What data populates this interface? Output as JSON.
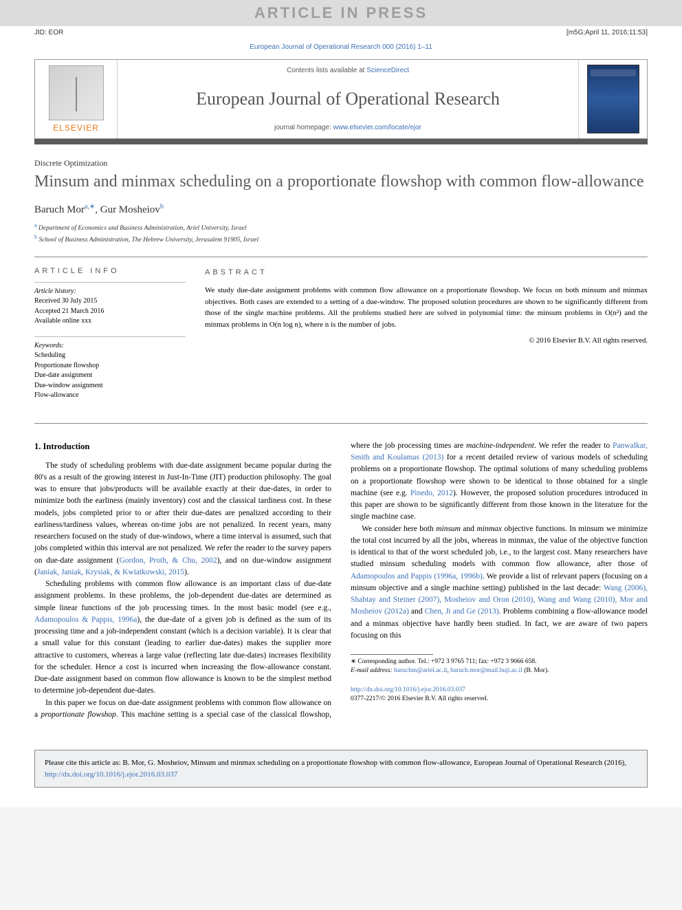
{
  "watermark": "ARTICLE IN PRESS",
  "header": {
    "jid": "JID: EOR",
    "stamp": "[m5G;April 11, 2016;11:53]"
  },
  "journal_ref": "European Journal of Operational Research 000 (2016) 1–11",
  "masthead": {
    "contents_prefix": "Contents lists available at ",
    "contents_link": "ScienceDirect",
    "journal_name": "European Journal of Operational Research",
    "homepage_prefix": "journal homepage: ",
    "homepage_url": "www.elsevier.com/locate/ejor",
    "publisher": "ELSEVIER"
  },
  "article": {
    "section_label": "Discrete Optimization",
    "title": "Minsum and minmax scheduling on a proportionate flowshop with common flow-allowance",
    "author_a_name": "Baruch Mor",
    "author_a_sup": "a,∗",
    "author_sep": ", ",
    "author_b_name": "Gur Mosheiov",
    "author_b_sup": "b",
    "aff_a_sup": "a",
    "aff_a": " Department of Economics and Business Administration, Ariel University, Israel",
    "aff_b_sup": "b",
    "aff_b": " School of Business Administration, The Hebrew University, Jerusalem 91905, Israel"
  },
  "info": {
    "heading": "article info",
    "history_label": "Article history:",
    "received": "Received 30 July 2015",
    "accepted": "Accepted 21 March 2016",
    "online": "Available online xxx",
    "keywords_label": "Keywords:",
    "kw1": "Scheduling",
    "kw2": "Proportionate flowshop",
    "kw3": "Due-date assignment",
    "kw4": "Due-window assignment",
    "kw5": "Flow-allowance"
  },
  "abstract": {
    "heading": "abstract",
    "text": "We study due-date assignment problems with common flow allowance on a proportionate flowshop. We focus on both minsum and minmax objectives. Both cases are extended to a setting of a due-window. The proposed solution procedures are shown to be significantly different from those of the single machine problems. All the problems studied here are solved in polynomial time: the minsum problems in O(n²) and the minmax problems in O(n log n), where n is the number of jobs.",
    "copyright": "© 2016 Elsevier B.V. All rights reserved."
  },
  "body": {
    "h_intro": "1. Introduction",
    "p1a": "The study of scheduling problems with due-date assignment became popular during the 80's as a result of the growing interest in Just-In-Time (JIT) production philosophy. The goal was to ensure that jobs/products will be available exactly at their due-dates, in order to minimize both the earliness (mainly inventory) cost and the classical tardiness cost. In these models, jobs completed prior to or after their due-dates are penalized according to their earliness/tardiness values, whereas on-time jobs are not penalized. In recent years, many researchers focused on the study of due-windows, where a time interval is assumed, such that jobs completed within this interval are not penalized. We refer the reader to the survey papers on due-date assignment (",
    "p1_link1": "Gordon, Proth, & Chu, 2002",
    "p1b": "), and on due-window assignment (",
    "p1_link2": "Janiak, Janiak, Krysiak, & Kwiatkowski, 2015",
    "p1c": ").",
    "p2a": "Scheduling problems with common flow allowance is an important class of due-date assignment problems. In these problems, the job-dependent due-dates are determined as simple linear functions of the job processing times. In the most basic model (see e.g., ",
    "p2_link1": "Adamopoulos & Pappis, 1996a",
    "p2b": "), the due-date of a given job is defined as the sum of its processing time and a job-independent constant (which is a decision variable). It is clear that a small value for this constant (leading to earlier due-dates) makes the supplier more attractive to customers, whereas a large value (reflecting late due-dates) increases flexibility for the scheduler. Hence a cost is incurred when increasing the flow-allowance constant. Due-date assignment based on common flow allowance is known to be the simplest method to determine job-dependent due-dates.",
    "p3a": "In this paper we focus on due-date assignment problems with common flow allowance on a ",
    "p3_em": "proportionate flowshop",
    "p3b": ". This machine setting is a special case of the classical flowshop, where the job processing times are ",
    "p3_em2": "machine-independent",
    "p3c": ". We refer the reader to ",
    "p3_link1": "Panwalkar, Smith and Koulamas (2013)",
    "p3d": " for a recent detailed review of various models of scheduling problems on a proportionate flowshop. The optimal solutions of many scheduling problems on a proportionate flowshop were shown to be identical to those obtained for a single machine (see e.g. ",
    "p3_link2": "Pinedo, 2012",
    "p3e": "). However, the proposed solution procedures introduced in this paper are shown to be significantly different from those known in the literature for the single machine case.",
    "p4a": "We consider here both ",
    "p4_em1": "minsum",
    "p4b": " and ",
    "p4_em2": "minmax",
    "p4c": " objective functions. In minsum we minimize the total cost incurred by all the jobs, whereas in minmax, the value of the objective function is identical to that of the worst scheduled job, i.e., to the largest cost. Many researchers have studied minsum scheduling models with common flow allowance, after those of ",
    "p4_link1": "Adamopoulos and Pappis (1996a, 1996b)",
    "p4d": ". We provide a list of relevant papers (focusing on a minsum objective and a single machine setting) published in the last decade: ",
    "p4_link2": "Wang (2006), Shabtay and Steiner (2007), Mosheiov and Oron (2010), Wang and Wang (2010), Mor and Mosheiov (2012a)",
    "p4e": " and ",
    "p4_link3": "Chen, Ji and Ge (2013)",
    "p4f": ". Problems combining a flow-allowance model and a minmax objective have hardly been studied. In fact, we are aware of two papers focusing on this"
  },
  "footnote": {
    "corr": "∗ Corresponding author. Tel.: +972 3 9765 711; fax: +972 3 9066 658.",
    "email_label": "E-mail address: ",
    "email1": "baruchm@ariel.ac.il",
    "email_sep": ", ",
    "email2": "baruch.mor@mail.huji.ac.il",
    "email_tail": " (B. Mor)."
  },
  "doi": {
    "url": "http://dx.doi.org/10.1016/j.ejor.2016.03.037",
    "issn": "0377-2217/© 2016 Elsevier B.V. All rights reserved."
  },
  "citebox": {
    "text_a": "Please cite this article as: B. Mor, G. Mosheiov, Minsum and minmax scheduling on a proportionate flowshop with common flow-allowance, European Journal of Operational Research (2016), ",
    "url": "http://dx.doi.org/10.1016/j.ejor.2016.03.037"
  },
  "colors": {
    "link": "#3b6fb6",
    "watermark_bg": "#dcdcdc",
    "watermark_fg": "#9e9e9e",
    "dark_rule": "#5a5a5a",
    "citebox_bg": "#eef0f2",
    "elsevier_orange": "#e67817"
  }
}
